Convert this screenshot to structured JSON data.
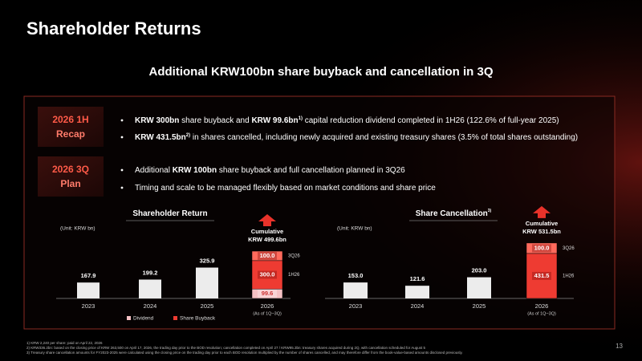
{
  "header": {
    "title": "Shareholder Returns",
    "subtitle": "Additional KRW100bn share buyback and cancellation in 3Q"
  },
  "recap": [
    {
      "label": [
        "2026 1H",
        "Recap"
      ],
      "bullets": [
        [
          {
            "text": "KRW 300bn",
            "bold": true
          },
          {
            "text": " share buyback and "
          },
          {
            "text": "KRW 99.6bn",
            "bold": true
          },
          {
            "text": "1)",
            "sup": true
          },
          {
            "text": " capital reduction dividend completed in 1H26 (122.6% of full-year 2025)"
          }
        ],
        [
          {
            "text": "KRW 431.5bn",
            "bold": true
          },
          {
            "text": "2)",
            "sup": true
          },
          {
            "text": " in shares cancelled, including newly acquired and existing treasury shares (3.5% of total shares outstanding)"
          }
        ]
      ]
    },
    {
      "label": [
        "2026 3Q",
        "Plan"
      ],
      "bullets": [
        [
          {
            "text": "Additional "
          },
          {
            "text": "KRW 100bn",
            "bold": true
          },
          {
            "text": " share buyback and full cancellation planned in 3Q26"
          }
        ],
        [
          {
            "text": "Timing and scale to be managed flexibly based on market conditions and share price"
          }
        ]
      ]
    }
  ],
  "chart_data": [
    {
      "type": "bar",
      "stacked": true,
      "title": "Shareholder Return",
      "unit": "(Unit: KRW bn)",
      "categories": [
        "2023",
        "2024",
        "2025",
        "2026"
      ],
      "category_notes": [
        null,
        null,
        null,
        "(As of 1Q~3Q)"
      ],
      "annotation": [
        "Cumulative",
        "KRW 499.6bn"
      ],
      "legend": true,
      "series": [
        {
          "name": "Dividend",
          "color": "#f5c1c4",
          "colors": [
            "#ececec",
            "#ececec",
            "#ececec",
            "#f5c1c4"
          ],
          "values": [
            167.9,
            199.2,
            325.9,
            99.6
          ],
          "value_labels": [
            "167.9",
            "199.2",
            "325.9",
            "99.6"
          ]
        },
        {
          "name": "Share Buyback",
          "label": "1H26",
          "color": "#ee3b32",
          "values": [
            null,
            null,
            null,
            300.0
          ],
          "value_labels": [
            null,
            null,
            null,
            "300.0"
          ]
        },
        {
          "label": "3Q26",
          "color": "#ff6a5c",
          "values": [
            null,
            null,
            null,
            100.0
          ],
          "value_labels": [
            null,
            null,
            null,
            "100.0"
          ]
        }
      ]
    },
    {
      "type": "bar",
      "stacked": true,
      "title": "Share Cancellation",
      "title_note": "3)",
      "unit": "(Unit: KRW bn)",
      "categories": [
        "2023",
        "2024",
        "2025",
        "2026"
      ],
      "category_notes": [
        null,
        null,
        null,
        "(As of 1Q~3Q)"
      ],
      "annotation": [
        "Cumulative",
        "KRW 531.5bn"
      ],
      "legend": false,
      "series": [
        {
          "color": "#ececec",
          "colors": [
            "#ececec",
            "#ececec",
            "#ececec",
            "#ee3b32"
          ],
          "label_index": 3,
          "label": "1H26",
          "values": [
            153.0,
            121.6,
            203.0,
            431.5
          ],
          "value_labels": [
            "153.0",
            "121.6",
            "203.0",
            "431.5"
          ]
        },
        {
          "label": "3Q26",
          "color": "#ff6a5c",
          "values": [
            null,
            null,
            null,
            100.0
          ],
          "value_labels": [
            null,
            null,
            null,
            "100.0"
          ]
        }
      ]
    }
  ],
  "footnotes": [
    "1) KRW 2,240 per share; paid on April 22, 2026",
    "2) KRW336.2bn: based on the closing price of KRW 263,500 on April 17, 2026, the trading day prior to the BOD resolution; cancellation completed on April 27 / KRW95.3bn: treasury shares acquired during 2Q, with cancellation scheduled for August 5",
    "3) Treasury share cancellation amounts for FY2023-2025 were calculated using the closing price on the trading day prior to each BOD resolution multiplied by the number of shares cancelled, and may therefore differ from the book-value-based amounts disclosed previously."
  ],
  "page_number": "13"
}
